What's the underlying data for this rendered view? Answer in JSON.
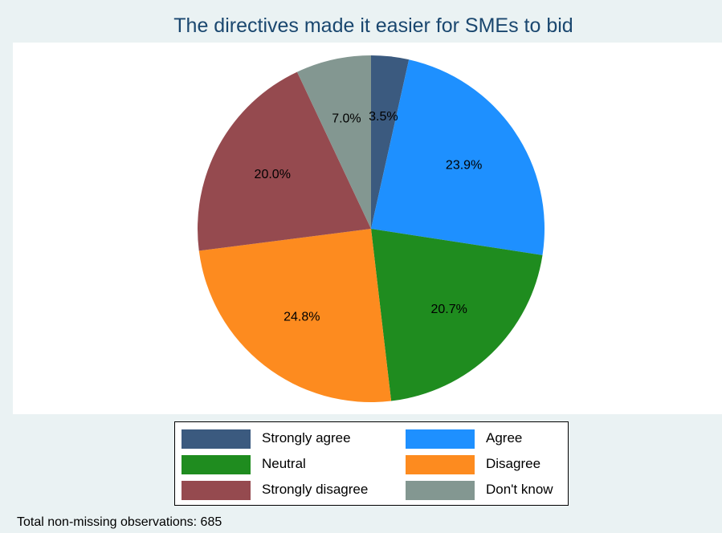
{
  "chart_data": {
    "type": "pie",
    "title": "The directives made it easier for SMEs to bid",
    "categories": [
      "Strongly agree",
      "Agree",
      "Neutral",
      "Disagree",
      "Strongly disagree",
      "Don't know"
    ],
    "values": [
      3.5,
      23.9,
      20.7,
      24.8,
      20.0,
      7.0
    ],
    "value_labels": [
      "3.5%",
      "23.9%",
      "20.7%",
      "24.8%",
      "20.0%",
      "7.0%"
    ],
    "colors": [
      "#3b5a7f",
      "#1e90ff",
      "#1f8c1f",
      "#fd8b1f",
      "#954a4f",
      "#839791"
    ],
    "start_angle": "12 o'clock",
    "direction": "clockwise",
    "legend": {
      "placement": "bottom",
      "columns": 2
    },
    "note": "Total non-missing observations: 685"
  }
}
